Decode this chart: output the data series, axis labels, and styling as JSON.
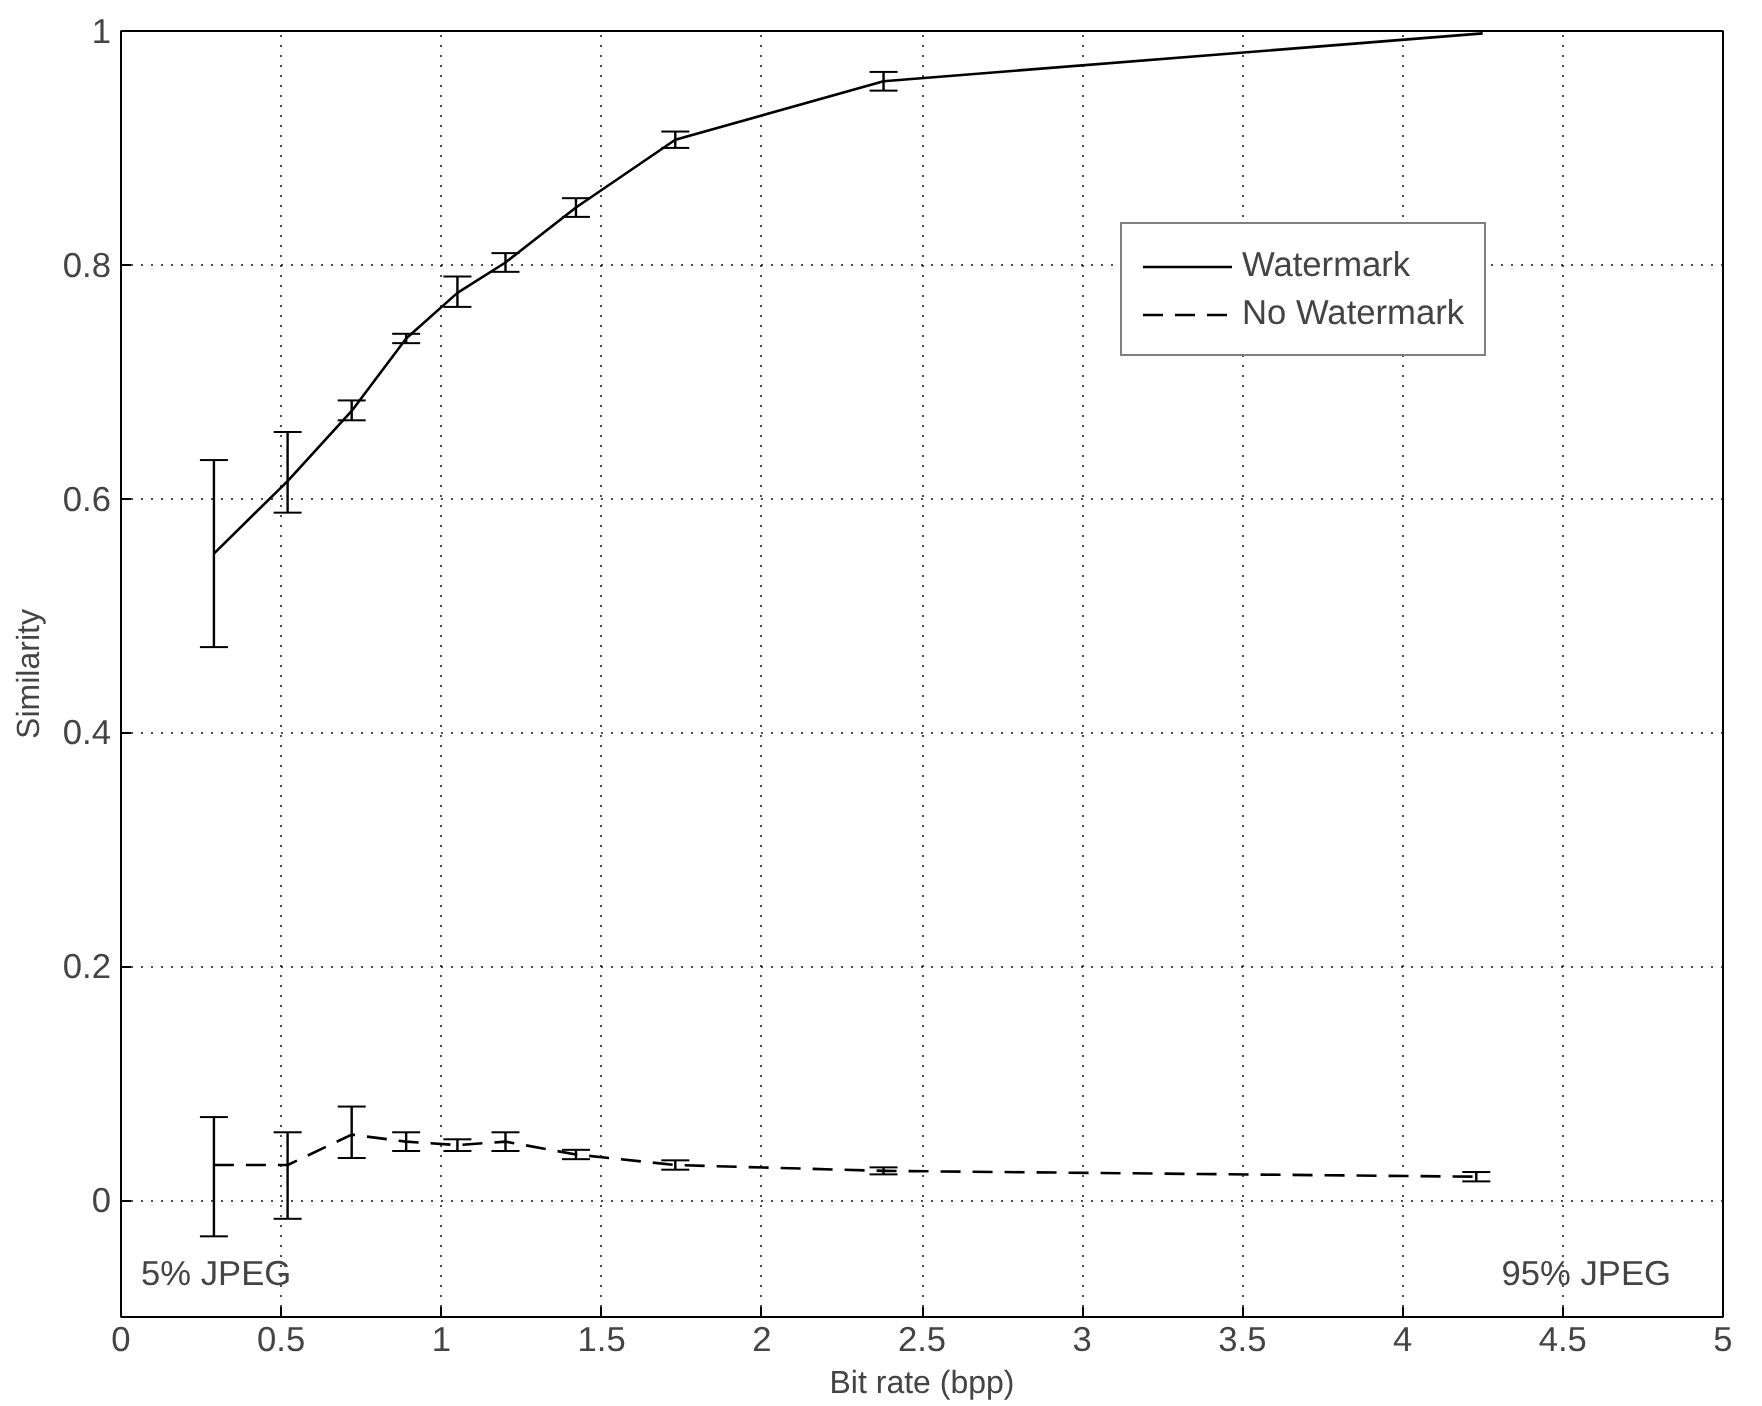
{
  "chart_data": {
    "type": "line",
    "xlabel": "Bit rate (bpp)",
    "ylabel": "Similarity",
    "xlim": [
      0,
      5
    ],
    "ylim": [
      -0.1,
      1
    ],
    "xticks": [
      0,
      0.5,
      1,
      1.5,
      2,
      2.5,
      3,
      3.5,
      4,
      4.5,
      5
    ],
    "yticks": [
      0,
      0.2,
      0.4,
      0.6,
      0.8,
      1
    ],
    "grid": true,
    "legend": "top right",
    "marker": "none",
    "series": [
      {
        "name": "Watermark",
        "color": "#000000",
        "line_style": "solid",
        "x": [
          0.29,
          0.52,
          0.72,
          0.89,
          1.05,
          1.2,
          1.42,
          1.73,
          2.38,
          4.25
        ],
        "values": [
          0.553,
          0.615,
          0.675,
          0.737,
          0.776,
          0.802,
          0.849,
          0.907,
          0.957,
          0.998
        ],
        "errors": [
          [
            0.473,
            0.633
          ],
          [
            0.588,
            0.657
          ],
          [
            0.667,
            0.684
          ],
          [
            0.733,
            0.741
          ],
          [
            0.764,
            0.79
          ],
          [
            0.794,
            0.81
          ],
          [
            0.841,
            0.857
          ],
          [
            0.9,
            0.914
          ],
          [
            0.949,
            0.965
          ],
          null
        ]
      },
      {
        "name": "No Watermark",
        "color": "#000000",
        "line_style": "dashed",
        "x": [
          0.29,
          0.52,
          0.72,
          0.89,
          1.05,
          1.2,
          1.42,
          1.73,
          2.38,
          4.23
        ],
        "values": [
          0.03,
          0.03,
          0.056,
          0.05,
          0.047,
          0.05,
          0.039,
          0.03,
          0.025,
          0.02
        ],
        "errors": [
          [
            -0.031,
            0.071
          ],
          [
            -0.016,
            0.058
          ],
          [
            0.036,
            0.08
          ],
          [
            0.042,
            0.058
          ],
          [
            0.042,
            0.052
          ],
          [
            0.042,
            0.058
          ],
          [
            0.035,
            0.043
          ],
          [
            0.026,
            0.034
          ],
          [
            0.022,
            0.028
          ],
          [
            0.016,
            0.024
          ]
        ]
      }
    ],
    "annotations": [
      "5% JPEG",
      "95% JPEG"
    ]
  }
}
